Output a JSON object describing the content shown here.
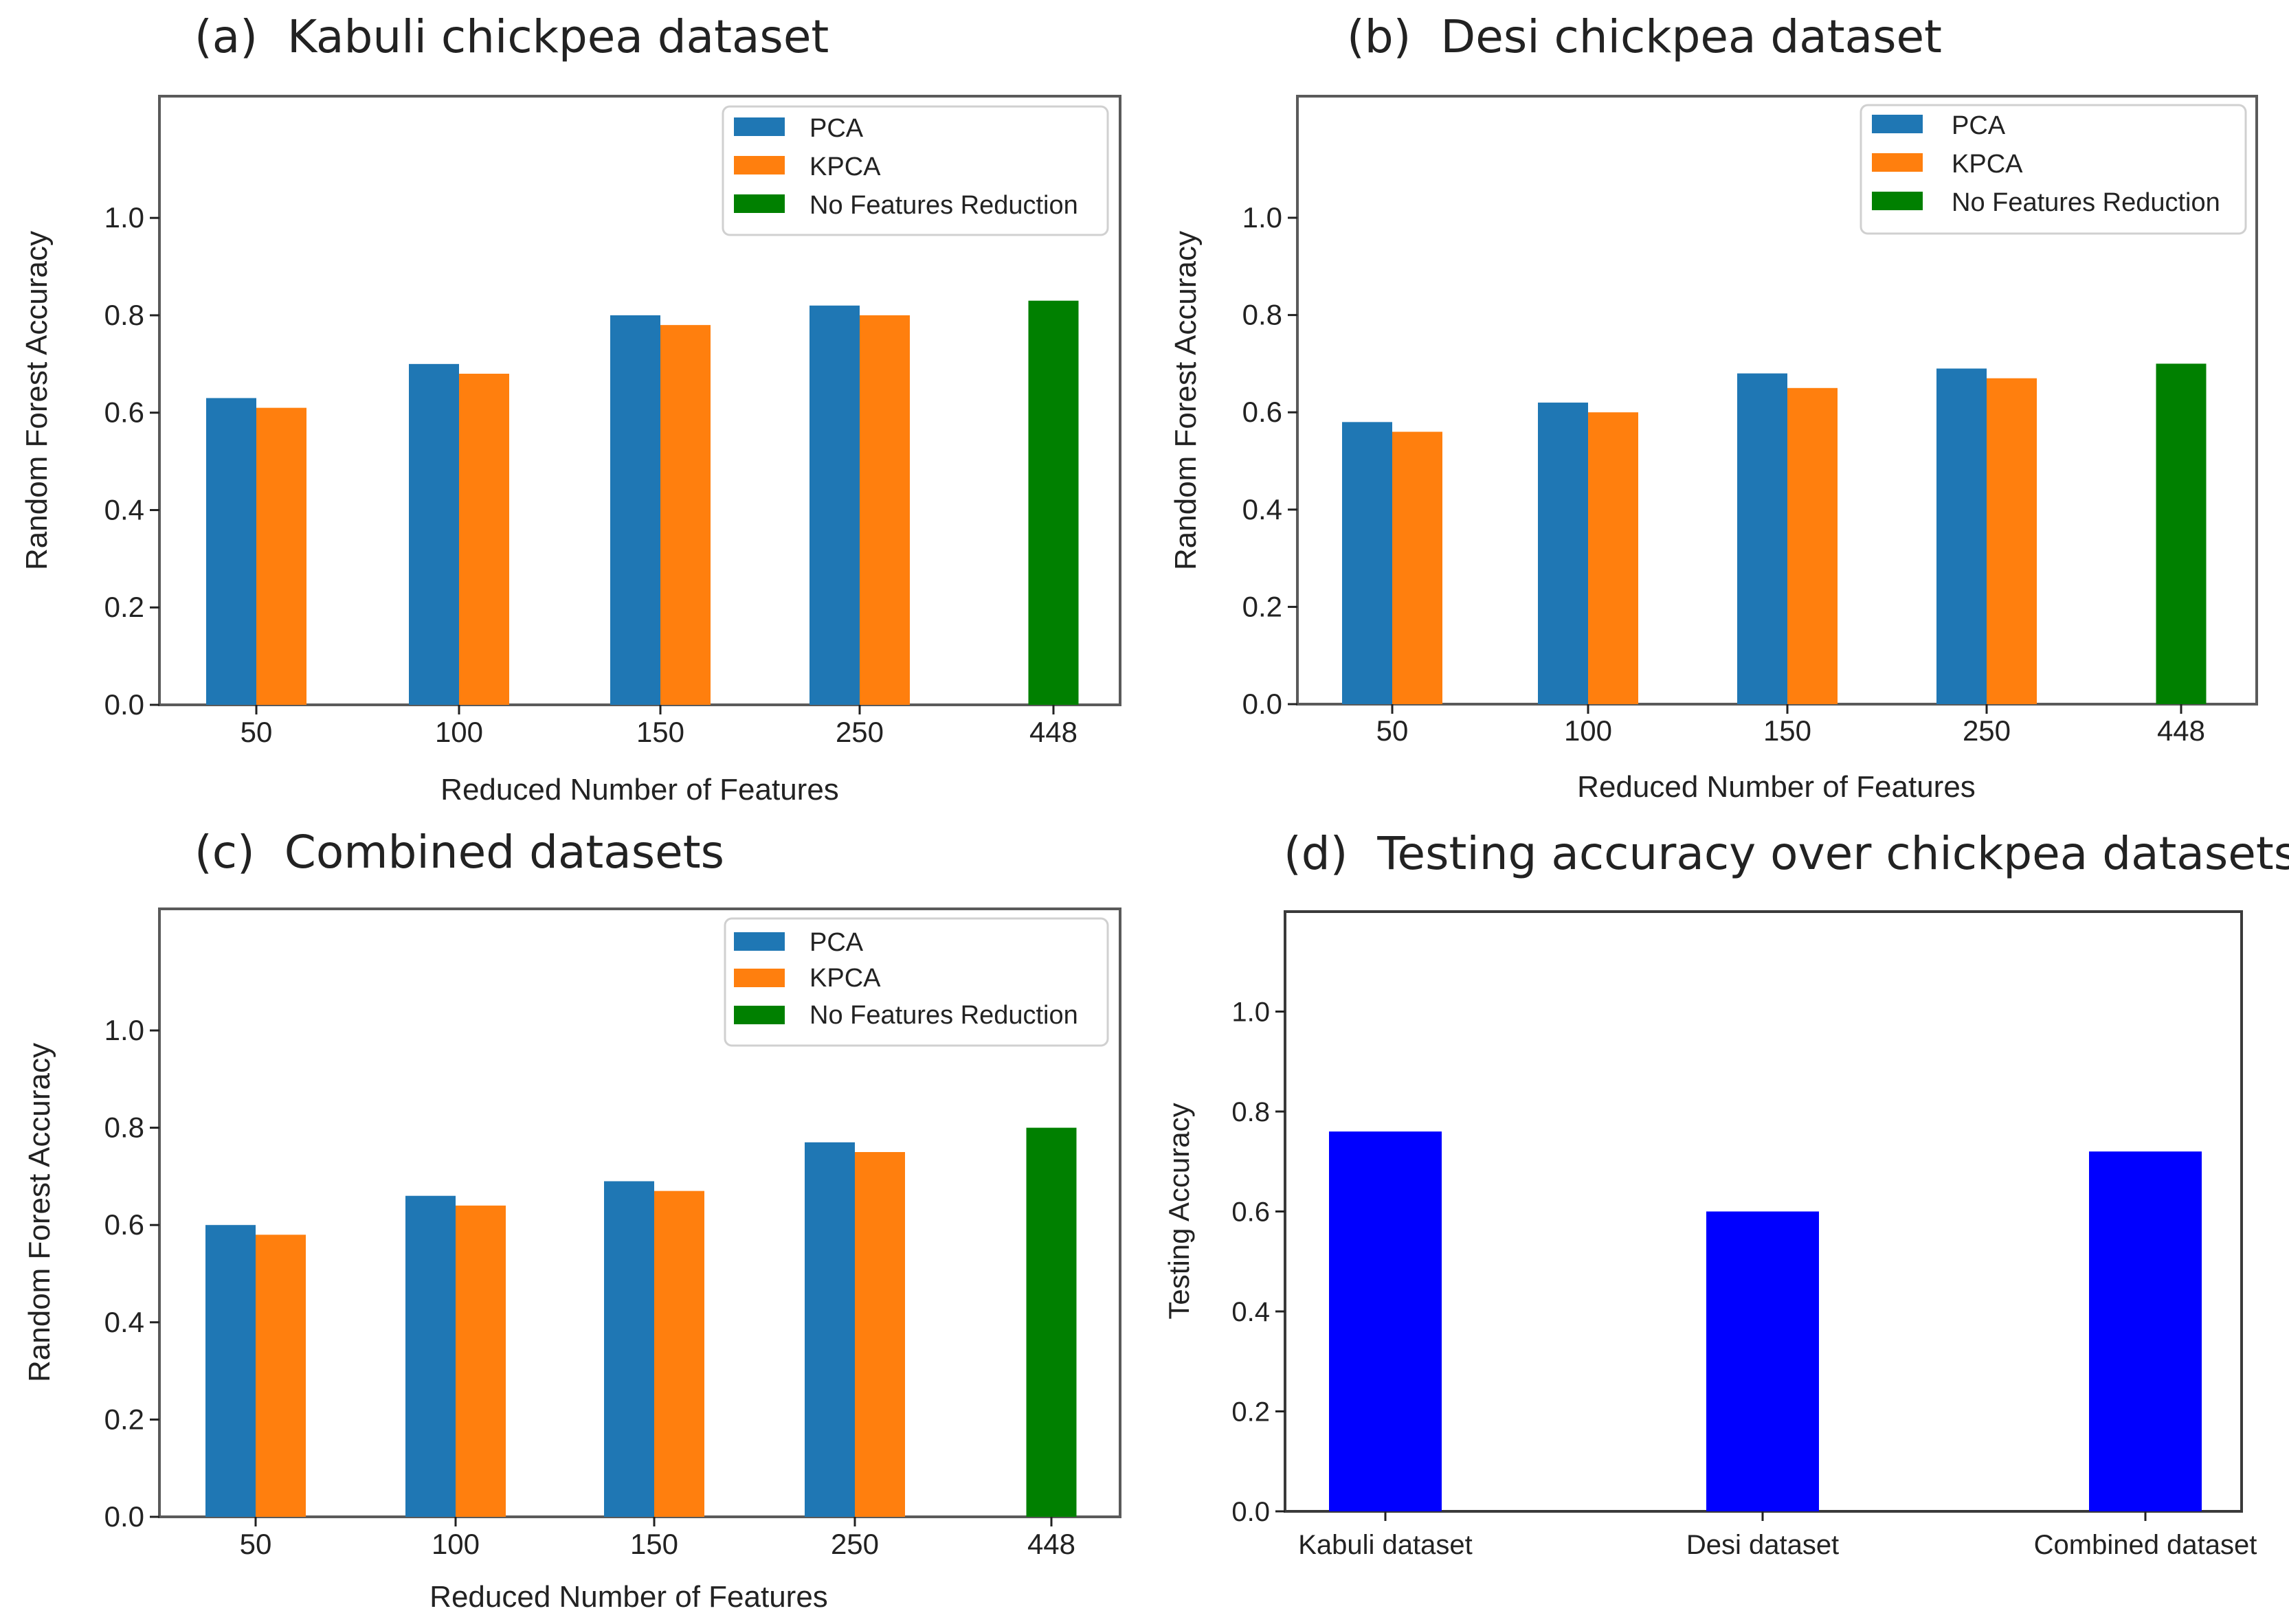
{
  "figure": {
    "colors": {
      "pca": "#1f77b4",
      "kpca": "#ff7f0e",
      "none": "#008000",
      "testing": "#0000ff",
      "frame": "#5a5a5a",
      "text": "#222222"
    }
  },
  "chart_data": [
    {
      "type": "bar",
      "panel_label": "(a)",
      "title": "Kabuli chickpea dataset",
      "xlabel": "Reduced Number of Features",
      "ylabel": "Random Forest Accuracy",
      "ylim": [
        0,
        1.25
      ],
      "yticks": [
        "0.0",
        "0.2",
        "0.4",
        "0.6",
        "0.8",
        "1.0"
      ],
      "categories": [
        "50",
        "100",
        "150",
        "250",
        "448"
      ],
      "legend_position": "top-right",
      "series": [
        {
          "name": "PCA",
          "color": "#1f77b4",
          "values": [
            0.63,
            0.7,
            0.8,
            0.82,
            null
          ]
        },
        {
          "name": "KPCA",
          "color": "#ff7f0e",
          "values": [
            0.61,
            0.68,
            0.78,
            0.8,
            null
          ]
        },
        {
          "name": "No Features Reduction",
          "color": "#008000",
          "values": [
            null,
            null,
            null,
            null,
            0.83
          ]
        }
      ]
    },
    {
      "type": "bar",
      "panel_label": "(b)",
      "title": "Desi chickpea dataset",
      "xlabel": "Reduced Number of Features",
      "ylabel": "Random Forest Accuracy",
      "ylim": [
        0,
        1.25
      ],
      "yticks": [
        "0.0",
        "0.2",
        "0.4",
        "0.6",
        "0.8",
        "1.0"
      ],
      "categories": [
        "50",
        "100",
        "150",
        "250",
        "448"
      ],
      "legend_position": "top-right",
      "series": [
        {
          "name": "PCA",
          "color": "#1f77b4",
          "values": [
            0.58,
            0.62,
            0.68,
            0.69,
            null
          ]
        },
        {
          "name": "KPCA",
          "color": "#ff7f0e",
          "values": [
            0.56,
            0.6,
            0.65,
            0.67,
            null
          ]
        },
        {
          "name": "No Features Reduction",
          "color": "#008000",
          "values": [
            null,
            null,
            null,
            null,
            0.7
          ]
        }
      ]
    },
    {
      "type": "bar",
      "panel_label": "(c)",
      "title": "Combined datasets",
      "xlabel": "Reduced Number of Features",
      "ylabel": "Random Forest Accuracy",
      "ylim": [
        0,
        1.25
      ],
      "yticks": [
        "0.0",
        "0.2",
        "0.4",
        "0.6",
        "0.8",
        "1.0"
      ],
      "categories": [
        "50",
        "100",
        "150",
        "250",
        "448"
      ],
      "legend_position": "top-right",
      "series": [
        {
          "name": "PCA",
          "color": "#1f77b4",
          "values": [
            0.6,
            0.66,
            0.69,
            0.77,
            null
          ]
        },
        {
          "name": "KPCA",
          "color": "#ff7f0e",
          "values": [
            0.58,
            0.64,
            0.67,
            0.75,
            null
          ]
        },
        {
          "name": "No Features Reduction",
          "color": "#008000",
          "values": [
            null,
            null,
            null,
            null,
            0.8
          ]
        }
      ]
    },
    {
      "type": "bar",
      "panel_label": "(d)",
      "title": "Testing accuracy over chickpea datasets",
      "xlabel": "",
      "ylabel": "Testing Accuracy",
      "ylim": [
        0,
        1.2
      ],
      "yticks": [
        "0.0",
        "0.2",
        "0.4",
        "0.6",
        "0.8",
        "1.0"
      ],
      "categories": [
        "Kabuli dataset",
        "Desi dataset",
        "Combined dataset"
      ],
      "legend_position": "none",
      "series": [
        {
          "name": "Testing Accuracy",
          "color": "#0000ff",
          "values": [
            0.76,
            0.6,
            0.72
          ]
        }
      ]
    }
  ]
}
